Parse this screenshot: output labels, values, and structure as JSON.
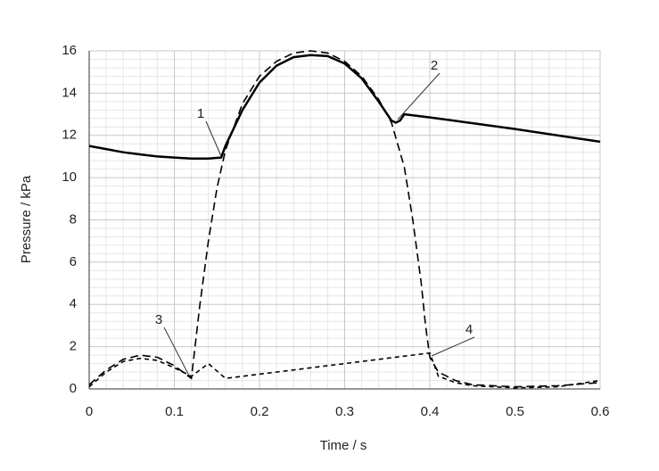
{
  "chart_data": {
    "type": "line",
    "xlabel": "Time / s",
    "ylabel": "Pressure / kPa",
    "xlim": [
      0,
      0.6
    ],
    "xticks": [
      0,
      0.1,
      0.2,
      0.3,
      0.4,
      0.5,
      0.6
    ],
    "ylim": [
      0,
      16
    ],
    "yticks": [
      0,
      2,
      4,
      6,
      8,
      10,
      12,
      14,
      16
    ],
    "grid": true,
    "minor_grid_divisions": 5,
    "series": [
      {
        "color": "#000000",
        "dash": "solid",
        "x": [
          0,
          0.02,
          0.04,
          0.06,
          0.08,
          0.1,
          0.12,
          0.14,
          0.155,
          0.16,
          0.18,
          0.2,
          0.22,
          0.24,
          0.26,
          0.28,
          0.3,
          0.32,
          0.34,
          0.355,
          0.36,
          0.365,
          0.37,
          0.4,
          0.5,
          0.6
        ],
        "values": [
          11.5,
          11.35,
          11.2,
          11.1,
          11.0,
          10.95,
          10.9,
          10.9,
          10.95,
          11.5,
          13.2,
          14.5,
          15.3,
          15.7,
          15.8,
          15.75,
          15.4,
          14.7,
          13.6,
          12.7,
          12.6,
          12.7,
          13.0,
          12.85,
          12.3,
          11.7
        ]
      },
      {
        "color": "#000000",
        "dash": "long-dash",
        "x": [
          0,
          0.02,
          0.04,
          0.06,
          0.08,
          0.1,
          0.12,
          0.13,
          0.14,
          0.15,
          0.16,
          0.18,
          0.2,
          0.22,
          0.24,
          0.26,
          0.28,
          0.3,
          0.32,
          0.34,
          0.355,
          0.37,
          0.38,
          0.39,
          0.395,
          0.4,
          0.41,
          0.43,
          0.45,
          0.5,
          0.55,
          0.6
        ],
        "values": [
          0.2,
          0.9,
          1.4,
          1.6,
          1.5,
          1.1,
          0.5,
          4,
          7,
          9.5,
          11.3,
          13.5,
          14.8,
          15.5,
          15.9,
          16.0,
          15.9,
          15.5,
          14.8,
          13.7,
          12.6,
          10.5,
          8,
          5,
          3,
          1.5,
          0.8,
          0.4,
          0.2,
          0.1,
          0.15,
          0.3
        ]
      },
      {
        "color": "#000000",
        "dash": "short-dash",
        "x": [
          0,
          0.02,
          0.04,
          0.06,
          0.08,
          0.1,
          0.12,
          0.14,
          0.16,
          0.4,
          0.41,
          0.43,
          0.45,
          0.5,
          0.55,
          0.6
        ],
        "values": [
          0.1,
          0.8,
          1.3,
          1.45,
          1.35,
          1.0,
          0.6,
          1.2,
          0.5,
          1.7,
          0.6,
          0.3,
          0.15,
          0.05,
          0.1,
          0.4
        ]
      }
    ],
    "annotations": [
      "1",
      "2",
      "3",
      "4"
    ]
  }
}
